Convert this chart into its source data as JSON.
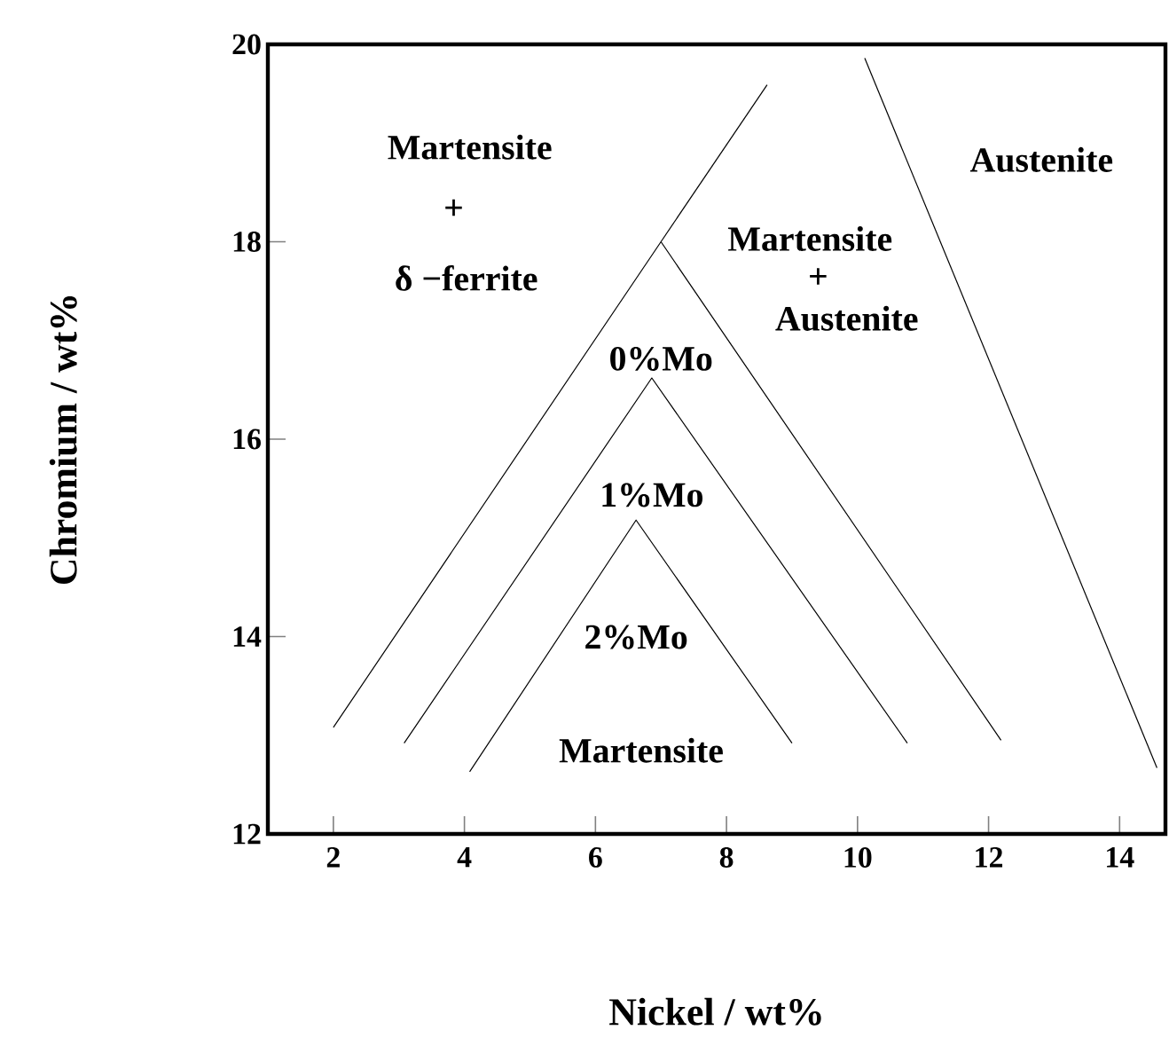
{
  "chart_data": {
    "type": "line",
    "xlabel": "Nickel / wt%",
    "ylabel": "Chromium / wt%",
    "xlim": [
      1,
      14.7
    ],
    "ylim": [
      12,
      20
    ],
    "xticks": [
      2,
      4,
      6,
      8,
      10,
      12,
      14
    ],
    "yticks": [
      12,
      14,
      16,
      18,
      20
    ],
    "grid": false,
    "marker": "none",
    "line_style": "solid",
    "series": [
      {
        "name": "0%Mo",
        "color": "#000000",
        "x": [
          2.0,
          7.0,
          12.19
        ],
        "values": [
          13.08,
          18.0,
          12.95
        ]
      },
      {
        "color": "#000000",
        "x": [
          7.0,
          8.62
        ],
        "values": [
          18.0,
          19.59
        ]
      },
      {
        "name": "1%Mo",
        "color": "#000000",
        "x": [
          3.08,
          6.86,
          10.76
        ],
        "values": [
          12.92,
          16.62,
          12.92
        ]
      },
      {
        "name": "2%Mo",
        "color": "#000000",
        "x": [
          4.08,
          6.62,
          9.0
        ],
        "values": [
          12.63,
          15.18,
          12.92
        ]
      },
      {
        "color": "#000000",
        "x": [
          10.11,
          14.57
        ],
        "values": [
          19.86,
          12.67
        ]
      }
    ],
    "annotations": [
      "Martensite",
      "+",
      "δ −ferrite",
      "Austenite",
      "Martensite",
      "+",
      "Austenite",
      "Martensite"
    ]
  }
}
